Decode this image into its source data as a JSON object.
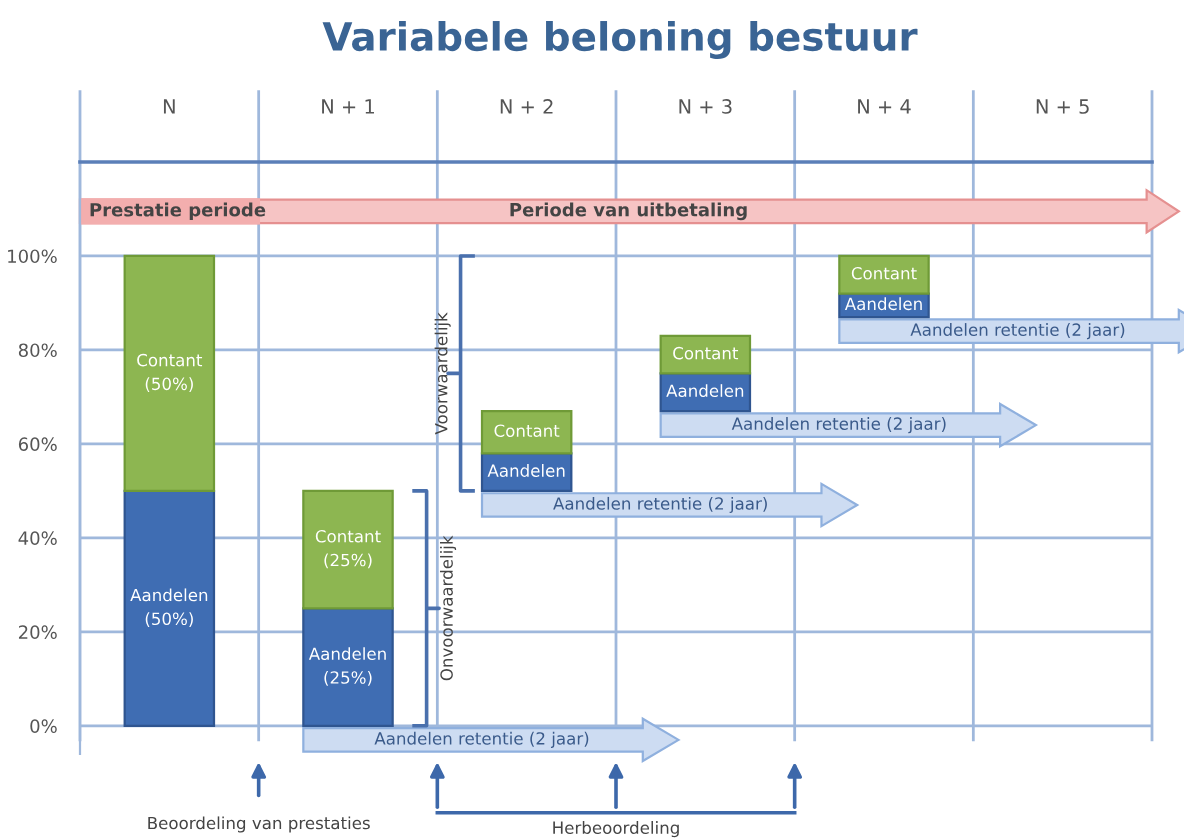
{
  "chart_data": {
    "type": "bar",
    "title": "Variabele beloning bestuur",
    "categories": [
      "N",
      "N + 1",
      "N + 2",
      "N + 3",
      "N + 4",
      "N + 5"
    ],
    "series": [
      {
        "color": "#3f6db3",
        "values": [
          50,
          25,
          8,
          8,
          5,
          null
        ],
        "base": [
          0,
          0,
          50,
          67,
          87,
          null
        ],
        "value_labels": [
          "Aandelen\n(50%)",
          "Aandelen\n(25%)",
          "Aandelen",
          "Aandelen",
          "Aandelen",
          null
        ]
      },
      {
        "color": "#8db651",
        "values": [
          50,
          25,
          9,
          8,
          8,
          null
        ],
        "base": [
          50,
          25,
          58,
          75,
          92,
          null
        ],
        "value_labels": [
          "Contant\n(50%)",
          "Contant\n(25%)",
          "Contant",
          "Contant",
          "Contant",
          null
        ]
      }
    ],
    "ylim": [
      -6,
      120
    ],
    "yticks": [
      {
        "value": 0,
        "label": "0%"
      },
      {
        "value": 20,
        "label": "20%"
      },
      {
        "value": 40,
        "label": "40%"
      },
      {
        "value": 60,
        "label": "60%"
      },
      {
        "value": 80,
        "label": "80%"
      },
      {
        "value": 100,
        "label": "100%"
      }
    ],
    "grid": "y",
    "annotations": [
      "Prestatie periode",
      "Periode van uitbetaling",
      "Aandelen retentie (2 jaar)",
      "Aandelen retentie (2 jaar)",
      "Aandelen retentie (2 jaar)",
      "Aandelen retentie (2 jaar)",
      "Voorwaardelijk",
      "Onvoorwaardelijk",
      "Beoordeling van prestaties",
      "Herbeoordeling"
    ]
  }
}
